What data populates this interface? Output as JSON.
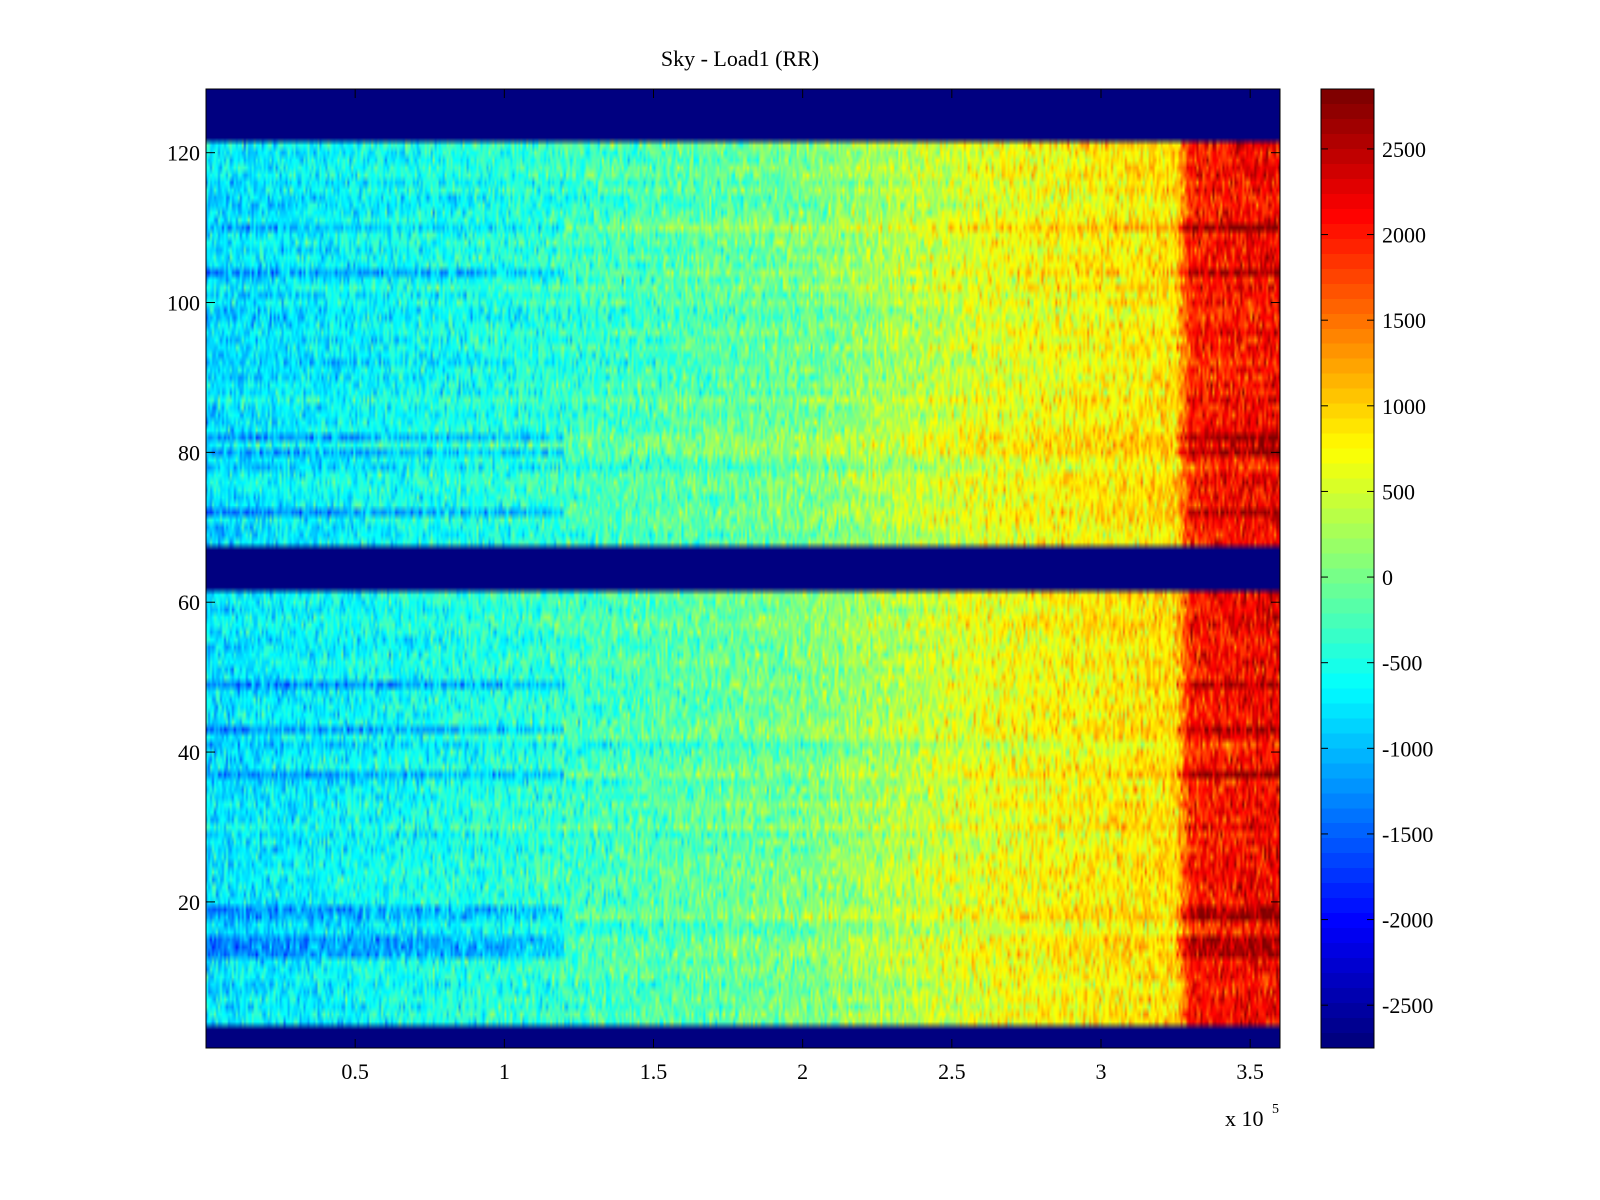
{
  "chart_data": {
    "type": "heatmap",
    "title": "Sky - Load1 (RR)",
    "xlabel": "",
    "ylabel": "",
    "x_exponent_label": "x 10",
    "x_exponent": "5",
    "xlim": [
      0,
      360000
    ],
    "ylim": [
      0.5,
      128.5
    ],
    "x_ticks": [
      50000,
      100000,
      150000,
      200000,
      250000,
      300000,
      350000
    ],
    "x_tick_labels": [
      "0.5",
      "1",
      "1.5",
      "2",
      "2.5",
      "3",
      "3.5"
    ],
    "y_ticks": [
      20,
      40,
      60,
      80,
      100,
      120
    ],
    "y_tick_labels": [
      "20",
      "40",
      "60",
      "80",
      "100",
      "120"
    ],
    "colormap": "jet",
    "color_limits": [
      -2750,
      2850
    ],
    "colorbar_ticks": [
      -2500,
      -2000,
      -1500,
      -1000,
      -500,
      0,
      500,
      1000,
      1500,
      2000,
      2500
    ],
    "colorbar_tick_labels": [
      "-2500",
      "-2000",
      "-1500",
      "-1000",
      "-500",
      "0",
      "500",
      "1000",
      "1500",
      "2000",
      "2500"
    ],
    "masked_row_ranges": [
      [
        1,
        3
      ],
      [
        62,
        67
      ],
      [
        122,
        128
      ]
    ],
    "masked_value": -2750,
    "value_trend_by_x": [
      {
        "x": 0,
        "approx_value": -800
      },
      {
        "x": 100000,
        "approx_value": -450
      },
      {
        "x": 200000,
        "approx_value": 0
      },
      {
        "x": 260000,
        "approx_value": 600
      },
      {
        "x": 325000,
        "approx_value": 900
      },
      {
        "x": 330000,
        "approx_value": 2000
      },
      {
        "x": 360000,
        "approx_value": 2200
      }
    ],
    "hot_rows": [
      13,
      14,
      15,
      18,
      19,
      37,
      43,
      49,
      72,
      80,
      82,
      104,
      110
    ],
    "grid": false,
    "legend": "none",
    "colorbar": "right"
  }
}
